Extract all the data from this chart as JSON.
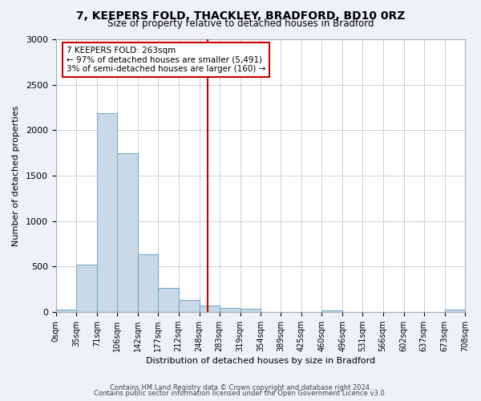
{
  "title": "7, KEEPERS FOLD, THACKLEY, BRADFORD, BD10 0RZ",
  "subtitle": "Size of property relative to detached houses in Bradford",
  "xlabel": "Distribution of detached houses by size in Bradford",
  "ylabel": "Number of detached properties",
  "bin_edges": [
    0,
    35,
    71,
    106,
    142,
    177,
    212,
    248,
    283,
    319,
    354,
    389,
    425,
    460,
    496,
    531,
    566,
    602,
    637,
    673,
    708
  ],
  "bar_heights": [
    25,
    520,
    2190,
    1750,
    635,
    265,
    135,
    70,
    40,
    35,
    0,
    0,
    0,
    15,
    0,
    0,
    0,
    0,
    0,
    25
  ],
  "bar_color": "#c9d9e8",
  "bar_edgecolor": "#7aaac8",
  "vline_x": 263,
  "vline_color": "#cc0000",
  "annotation_title": "7 KEEPERS FOLD: 263sqm",
  "annotation_line1": "← 97% of detached houses are smaller (5,491)",
  "annotation_line2": "3% of semi-detached houses are larger (160) →",
  "annotation_box_color": "#cc0000",
  "annotation_fill": "#ffffff",
  "ylim": [
    0,
    3000
  ],
  "xlim": [
    0,
    708
  ],
  "tick_labels": [
    "0sqm",
    "35sqm",
    "71sqm",
    "106sqm",
    "142sqm",
    "177sqm",
    "212sqm",
    "248sqm",
    "283sqm",
    "319sqm",
    "354sqm",
    "389sqm",
    "425sqm",
    "460sqm",
    "496sqm",
    "531sqm",
    "566sqm",
    "602sqm",
    "637sqm",
    "673sqm",
    "708sqm"
  ],
  "tick_positions": [
    0,
    35,
    71,
    106,
    142,
    177,
    212,
    248,
    283,
    319,
    354,
    389,
    425,
    460,
    496,
    531,
    566,
    602,
    637,
    673,
    708
  ],
  "footer_line1": "Contains HM Land Registry data © Crown copyright and database right 2024.",
  "footer_line2": "Contains public sector information licensed under the Open Government Licence v3.0.",
  "bg_color": "#eef1f5",
  "plot_bg_color": "#ffffff",
  "grid_color": "#c8d0da"
}
